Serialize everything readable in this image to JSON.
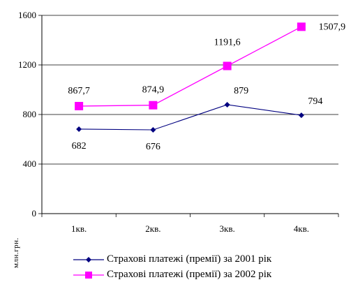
{
  "chart_data": {
    "type": "line",
    "categories": [
      "1кв.",
      "2кв.",
      "3кв.",
      "4кв."
    ],
    "series": [
      {
        "name": "Страхові платежі (премії) за 2001 рік",
        "values": [
          682,
          676,
          879,
          794
        ],
        "labels": [
          "682",
          "676",
          "879",
          "794"
        ],
        "color": "#000080",
        "marker": "diamond"
      },
      {
        "name": "Страхові платежі (премії) за 2002 рік",
        "values": [
          867.7,
          874.9,
          1191.6,
          1507.9
        ],
        "labels": [
          "867,7",
          "874,9",
          "1191,6",
          "1507,9"
        ],
        "color": "#ff00ff",
        "marker": "square"
      }
    ],
    "yticks": [
      0,
      400,
      800,
      1200,
      1600
    ],
    "ylim": [
      0,
      1600
    ],
    "xlabel": "",
    "ylabel": "млн.грн.",
    "grid": true,
    "legend": "bottom"
  }
}
